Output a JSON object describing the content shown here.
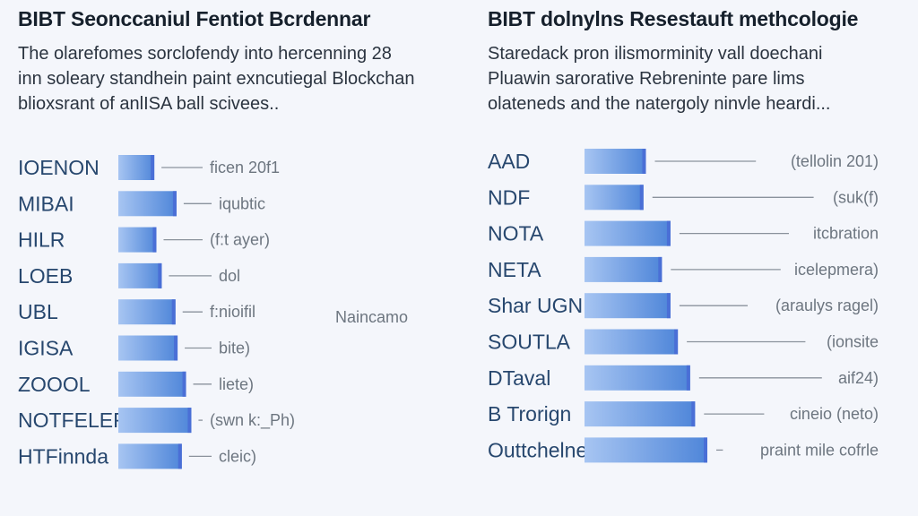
{
  "accent": "#4f86d9",
  "bar_color_light": "#a7c5f2",
  "bar_color_dark": "#4a6fd6",
  "leader_color": "#8a929c",
  "chart_data": [
    {
      "type": "bar",
      "orientation": "horizontal",
      "title": "BIBT Seonccaniul Fentiot Bcrdennar",
      "subtitle": [
        "The olarefomes sorclofendy into hercenning 28",
        "inn soleary standhein paint exncutiegal Blockchan",
        "blioxsrant of anlISA ball scivees.."
      ],
      "categories": [
        "IOENON",
        "MIBAI",
        "HILR",
        "LOEB",
        "UBL",
        "IGISA",
        "ZOOOL",
        "NOTFELER",
        "HTFinnda"
      ],
      "values": [
        0.34,
        0.55,
        0.36,
        0.41,
        0.54,
        0.56,
        0.64,
        0.69,
        0.6
      ],
      "annotations": [
        "ficen 20f1",
        "iqubtic",
        "(f:t ayer)",
        "dol",
        "f:nioifil",
        "bite)",
        "liete)",
        "(swn k:_Ph)",
        "cleic)"
      ],
      "extra_labels": [
        "Naincamo"
      ],
      "xlim": [
        0,
        1
      ]
    },
    {
      "type": "bar",
      "orientation": "horizontal",
      "title": "BIBT dolnylns Resestauft methcologie",
      "subtitle": [
        "Staredack pron ilismorminity vall doechani",
        "Pluawin sarorative Rebreninte pare lims",
        "olateneds and the natergoly ninvle heardi..."
      ],
      "categories": [
        "AAD",
        "NDF",
        "NOTA",
        "NETA",
        "Shar UGN",
        "SOUTLA",
        "DTaval",
        "B Trorign",
        "Outtchelne"
      ],
      "values": [
        0.5,
        0.48,
        0.7,
        0.63,
        0.7,
        0.76,
        0.86,
        0.9,
        1.0
      ],
      "annotations": [
        "(tellolin 201)",
        "(suk(f)",
        "itcbration",
        "icelepmera)",
        "(araulys ragel)",
        "(ionsite",
        "aif24)",
        "cineio (neto)",
        "praint mile cofrle"
      ],
      "xlim": [
        0,
        1
      ]
    }
  ]
}
